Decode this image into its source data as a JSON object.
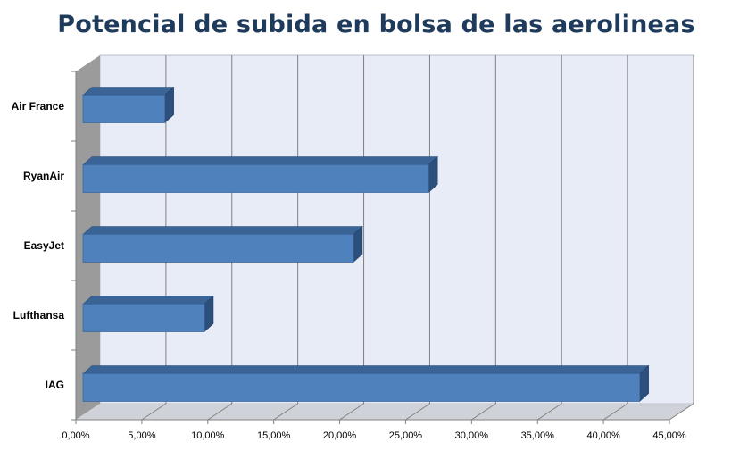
{
  "chart_data": {
    "type": "bar",
    "orientation": "horizontal",
    "title": "Potencial de subida en bolsa de las aerolineas",
    "xlabel": "",
    "ylabel": "",
    "categories": [
      "IAG",
      "Lufthansa",
      "EasyJet",
      "RyanAir",
      "Air France"
    ],
    "values": [
      0.422,
      0.092,
      0.205,
      0.262,
      0.062
    ],
    "xlim": [
      0,
      0.45
    ],
    "x_ticks": [
      0,
      0.05,
      0.1,
      0.15,
      0.2,
      0.25,
      0.3,
      0.35,
      0.4,
      0.45
    ],
    "x_tick_labels": [
      "0,00%",
      "5,00%",
      "10,00%",
      "15,00%",
      "20,00%",
      "25,00%",
      "30,00%",
      "35,00%",
      "40,00%",
      "45,00%"
    ],
    "style": "3d-clustered-bar",
    "grid": true,
    "legend": "none"
  },
  "colors": {
    "title": "#1f3b5c",
    "bar_front": "#4f81bd",
    "bar_top": "#3a6496",
    "bar_side": "#2c4f7c",
    "plot_back": "#e8ecf6",
    "plot_floor": "#cfd3d9",
    "plot_wall": "#9b9b9b",
    "gridline": "#808080"
  }
}
